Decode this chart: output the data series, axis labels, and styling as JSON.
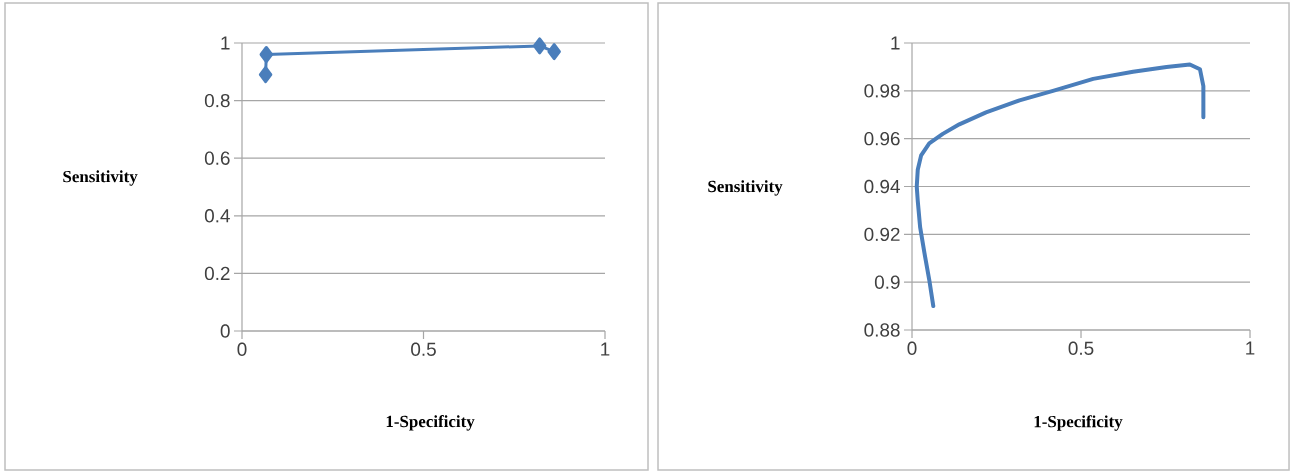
{
  "chart_data": [
    {
      "type": "line",
      "xlabel": "1-Specificity",
      "ylabel": "Sensitivity",
      "marker": "diamond",
      "grid": "y",
      "xlim": [
        0,
        1
      ],
      "ylim": [
        0,
        1
      ],
      "xticks": [
        0,
        0.5,
        1
      ],
      "yticks": [
        0,
        0.2,
        0.4,
        0.6,
        0.8,
        1
      ],
      "series": [
        {
          "color": "#4a7ebb",
          "x": [
            0.065,
            0.067,
            0.82,
            0.86
          ],
          "values": [
            0.89,
            0.96,
            0.99,
            0.97
          ]
        }
      ]
    },
    {
      "type": "line",
      "xlabel": "1-Specificity",
      "ylabel": "Sensitivity",
      "marker": "none",
      "grid": "y",
      "xlim": [
        0,
        1
      ],
      "ylim": [
        0.88,
        1
      ],
      "xticks": [
        0,
        0.5,
        1
      ],
      "yticks": [
        0.88,
        0.9,
        0.92,
        0.94,
        0.96,
        0.98,
        1
      ],
      "series": [
        {
          "color": "#4a7ebb",
          "x": [
            0.063,
            0.051,
            0.037,
            0.024,
            0.017,
            0.014,
            0.017,
            0.027,
            0.051,
            0.091,
            0.14,
            0.219,
            0.318,
            0.417,
            0.536,
            0.654,
            0.753,
            0.822,
            0.852,
            0.862,
            0.862
          ],
          "values": [
            0.89,
            0.901,
            0.912,
            0.923,
            0.934,
            0.94,
            0.947,
            0.953,
            0.958,
            0.962,
            0.966,
            0.971,
            0.976,
            0.98,
            0.985,
            0.988,
            0.99,
            0.991,
            0.989,
            0.982,
            0.969
          ]
        }
      ]
    }
  ]
}
